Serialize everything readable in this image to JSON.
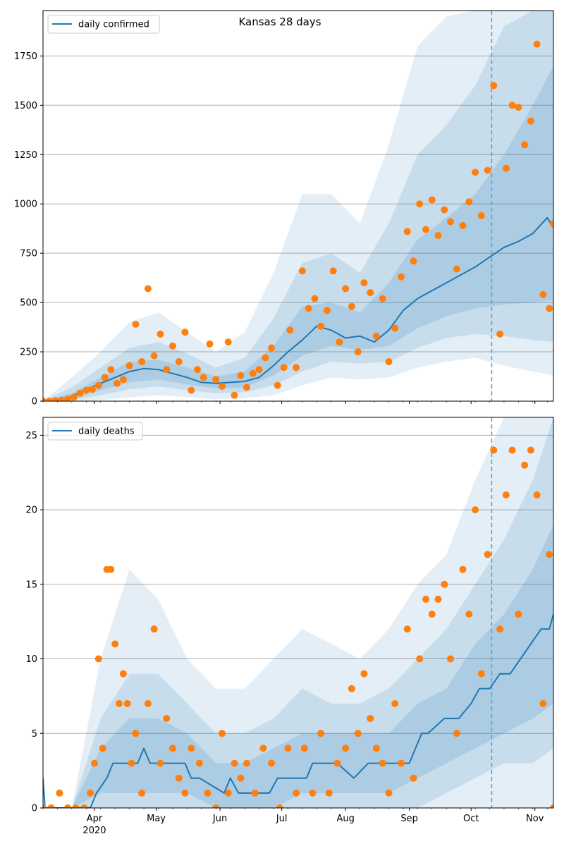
{
  "chart_data": [
    {
      "type": "line",
      "title": "Kansas 28 days",
      "legend": {
        "label": "daily confirmed",
        "placement": "top-left"
      },
      "ylim": [
        0,
        1980
      ],
      "yticks": [
        0,
        250,
        500,
        750,
        1000,
        1250,
        1500,
        1750
      ],
      "grid": "horizontal",
      "x_range": [
        "2020-03-07",
        "2020-11-10"
      ],
      "forecast_start": "2020-10-11",
      "median_line": {
        "x": [
          "2020-03-07",
          "2020-03-14",
          "2020-03-21",
          "2020-03-28",
          "2020-04-04",
          "2020-04-11",
          "2020-04-18",
          "2020-04-25",
          "2020-05-02",
          "2020-05-09",
          "2020-05-16",
          "2020-05-23",
          "2020-05-30",
          "2020-06-06",
          "2020-06-13",
          "2020-06-20",
          "2020-06-27",
          "2020-07-04",
          "2020-07-11",
          "2020-07-18",
          "2020-07-25",
          "2020-08-01",
          "2020-08-08",
          "2020-08-15",
          "2020-08-22",
          "2020-08-29",
          "2020-09-05",
          "2020-09-12",
          "2020-09-19",
          "2020-09-26",
          "2020-10-03",
          "2020-10-10",
          "2020-10-17",
          "2020-10-24",
          "2020-10-31",
          "2020-11-07",
          "2020-11-10"
        ],
        "y": [
          0,
          5,
          25,
          60,
          90,
          120,
          150,
          165,
          160,
          140,
          120,
          95,
          90,
          95,
          100,
          120,
          180,
          250,
          310,
          380,
          360,
          320,
          330,
          300,
          360,
          460,
          520,
          560,
          600,
          640,
          680,
          730,
          780,
          810,
          850,
          930,
          880
        ]
      },
      "bands": [
        {
          "name": "outer",
          "x": [
            "2020-03-07",
            "2020-03-21",
            "2020-04-04",
            "2020-04-18",
            "2020-05-02",
            "2020-05-16",
            "2020-05-30",
            "2020-06-13",
            "2020-06-27",
            "2020-07-11",
            "2020-07-25",
            "2020-08-08",
            "2020-08-22",
            "2020-09-05",
            "2020-09-19",
            "2020-10-03",
            "2020-10-17",
            "2020-10-31",
            "2020-11-10"
          ],
          "low": [
            0,
            0,
            5,
            20,
            30,
            20,
            10,
            15,
            30,
            80,
            120,
            110,
            120,
            170,
            200,
            220,
            180,
            150,
            130
          ],
          "high": [
            0,
            120,
            250,
            400,
            450,
            350,
            250,
            350,
            650,
            1050,
            1050,
            900,
            1300,
            1800,
            1950,
            1980,
            1980,
            1980,
            1980
          ]
        },
        {
          "name": "middle",
          "x": [
            "2020-03-07",
            "2020-03-21",
            "2020-04-04",
            "2020-04-18",
            "2020-05-02",
            "2020-05-16",
            "2020-05-30",
            "2020-06-13",
            "2020-06-27",
            "2020-07-11",
            "2020-07-25",
            "2020-08-08",
            "2020-08-22",
            "2020-09-05",
            "2020-09-19",
            "2020-10-03",
            "2020-10-17",
            "2020-10-31",
            "2020-11-10"
          ],
          "low": [
            0,
            5,
            30,
            60,
            75,
            55,
            40,
            45,
            80,
            150,
            200,
            190,
            200,
            270,
            320,
            340,
            330,
            310,
            300
          ],
          "high": [
            0,
            70,
            170,
            270,
            300,
            240,
            170,
            220,
            420,
            700,
            750,
            650,
            900,
            1250,
            1400,
            1600,
            1900,
            1980,
            1980
          ]
        },
        {
          "name": "inner",
          "x": [
            "2020-03-07",
            "2020-03-21",
            "2020-04-04",
            "2020-04-18",
            "2020-05-02",
            "2020-05-16",
            "2020-05-30",
            "2020-06-13",
            "2020-06-27",
            "2020-07-11",
            "2020-07-25",
            "2020-08-08",
            "2020-08-22",
            "2020-09-05",
            "2020-09-19",
            "2020-10-03",
            "2020-10-17",
            "2020-10-31",
            "2020-11-10"
          ],
          "low": [
            0,
            12,
            55,
            95,
            110,
            85,
            65,
            70,
            130,
            230,
            280,
            260,
            280,
            370,
            430,
            470,
            490,
            500,
            510
          ],
          "high": [
            0,
            40,
            120,
            200,
            210,
            170,
            125,
            150,
            280,
            480,
            500,
            450,
            600,
            820,
            930,
            1050,
            1250,
            1500,
            1700
          ]
        }
      ],
      "observed": {
        "x": [
          "2020-03-07",
          "2020-03-10",
          "2020-03-13",
          "2020-03-16",
          "2020-03-19",
          "2020-03-22",
          "2020-03-25",
          "2020-03-28",
          "2020-03-31",
          "2020-04-03",
          "2020-04-06",
          "2020-04-09",
          "2020-04-12",
          "2020-04-15",
          "2020-04-18",
          "2020-04-21",
          "2020-04-24",
          "2020-04-27",
          "2020-04-30",
          "2020-05-03",
          "2020-05-06",
          "2020-05-09",
          "2020-05-12",
          "2020-05-15",
          "2020-05-18",
          "2020-05-21",
          "2020-05-24",
          "2020-05-27",
          "2020-05-30",
          "2020-06-02",
          "2020-06-05",
          "2020-06-08",
          "2020-06-11",
          "2020-06-14",
          "2020-06-17",
          "2020-06-20",
          "2020-06-23",
          "2020-06-26",
          "2020-06-29",
          "2020-07-02",
          "2020-07-05",
          "2020-07-08",
          "2020-07-11",
          "2020-07-14",
          "2020-07-17",
          "2020-07-20",
          "2020-07-23",
          "2020-07-26",
          "2020-07-29",
          "2020-08-01",
          "2020-08-04",
          "2020-08-07",
          "2020-08-10",
          "2020-08-13",
          "2020-08-16",
          "2020-08-19",
          "2020-08-22",
          "2020-08-25",
          "2020-08-28",
          "2020-08-31",
          "2020-09-03",
          "2020-09-06",
          "2020-09-09",
          "2020-09-12",
          "2020-09-15",
          "2020-09-18",
          "2020-09-21",
          "2020-09-24",
          "2020-09-27",
          "2020-09-30",
          "2020-10-03",
          "2020-10-06",
          "2020-10-09",
          "2020-10-12",
          "2020-10-15",
          "2020-10-18",
          "2020-10-21",
          "2020-10-24",
          "2020-10-27",
          "2020-10-30",
          "2020-11-02",
          "2020-11-05",
          "2020-11-08",
          "2020-11-10"
        ],
        "y": [
          0,
          0,
          3,
          5,
          10,
          20,
          40,
          55,
          60,
          80,
          120,
          160,
          90,
          110,
          180,
          390,
          200,
          570,
          230,
          340,
          160,
          280,
          200,
          350,
          55,
          160,
          120,
          290,
          110,
          75,
          300,
          30,
          130,
          70,
          140,
          160,
          220,
          270,
          80,
          170,
          360,
          170,
          660,
          470,
          520,
          380,
          460,
          660,
          300,
          570,
          480,
          250,
          600,
          550,
          330,
          520,
          200,
          370,
          630,
          860,
          710,
          1000,
          870,
          1020,
          840,
          970,
          910,
          670,
          890,
          1010,
          1160,
          940,
          1170,
          1600,
          340,
          1180,
          1500,
          1490,
          1300,
          1420,
          1810,
          540,
          470,
          900
        ]
      }
    },
    {
      "type": "line",
      "title": "",
      "legend": {
        "label": "daily deaths",
        "placement": "top-left"
      },
      "ylim": [
        0,
        26.2
      ],
      "yticks": [
        0,
        5,
        10,
        15,
        20,
        25
      ],
      "grid": "horizontal",
      "x_range": [
        "2020-03-07",
        "2020-11-10"
      ],
      "forecast_start": "2020-10-11",
      "xtick_labels": [
        "Apr",
        "May",
        "Jun",
        "Jul",
        "Aug",
        "Sep",
        "Oct",
        "Nov"
      ],
      "xtick_sub": "2020",
      "median_line": {
        "x": [
          "2020-03-07",
          "2020-03-08",
          "2020-03-30",
          "2020-04-02",
          "2020-04-07",
          "2020-04-10",
          "2020-04-22",
          "2020-04-25",
          "2020-04-28",
          "2020-05-15",
          "2020-05-18",
          "2020-05-22",
          "2020-06-03",
          "2020-06-06",
          "2020-06-10",
          "2020-06-25",
          "2020-06-29",
          "2020-07-13",
          "2020-07-16",
          "2020-07-28",
          "2020-08-05",
          "2020-08-12",
          "2020-08-18",
          "2020-09-01",
          "2020-09-04",
          "2020-09-07",
          "2020-09-10",
          "2020-09-18",
          "2020-09-25",
          "2020-10-01",
          "2020-10-05",
          "2020-10-10",
          "2020-10-15",
          "2020-10-20",
          "2020-10-25",
          "2020-10-30",
          "2020-11-04",
          "2020-11-08",
          "2020-11-10"
        ],
        "y": [
          2,
          0,
          0,
          1,
          2,
          3,
          3,
          4,
          3,
          3,
          2,
          2,
          1,
          2,
          1,
          1,
          2,
          2,
          3,
          3,
          2,
          3,
          3,
          3,
          4,
          5,
          5,
          6,
          6,
          7,
          8,
          8,
          9,
          9,
          10,
          11,
          12,
          12,
          13
        ]
      },
      "bands": [
        {
          "name": "outer",
          "x": [
            "2020-03-07",
            "2020-03-21",
            "2020-04-04",
            "2020-04-18",
            "2020-05-02",
            "2020-05-16",
            "2020-05-30",
            "2020-06-13",
            "2020-06-27",
            "2020-07-11",
            "2020-07-25",
            "2020-08-08",
            "2020-08-22",
            "2020-09-05",
            "2020-09-19",
            "2020-10-03",
            "2020-10-17",
            "2020-10-31",
            "2020-11-10"
          ],
          "low": [
            0,
            0,
            0,
            0,
            0,
            0,
            0,
            0,
            0,
            0,
            0,
            0,
            0,
            0,
            0,
            0,
            0,
            0,
            0
          ],
          "high": [
            0,
            0,
            10,
            16,
            14,
            10,
            8,
            8,
            10,
            12,
            11,
            10,
            12,
            15,
            17,
            22,
            26.2,
            26.2,
            26.2
          ]
        },
        {
          "name": "middle",
          "x": [
            "2020-03-07",
            "2020-03-21",
            "2020-04-04",
            "2020-04-18",
            "2020-05-02",
            "2020-05-16",
            "2020-05-30",
            "2020-06-13",
            "2020-06-27",
            "2020-07-11",
            "2020-07-25",
            "2020-08-08",
            "2020-08-22",
            "2020-09-05",
            "2020-09-19",
            "2020-10-03",
            "2020-10-17",
            "2020-10-31",
            "2020-11-10"
          ],
          "low": [
            0,
            0,
            0,
            0,
            0,
            0,
            0,
            0,
            0,
            0,
            0,
            0,
            0,
            0,
            1,
            2,
            3,
            3,
            4
          ],
          "high": [
            0,
            0,
            6,
            9,
            9,
            7,
            5,
            5,
            6,
            8,
            7,
            7,
            8,
            10,
            12,
            15,
            18,
            22,
            26.2
          ]
        },
        {
          "name": "inner",
          "x": [
            "2020-03-07",
            "2020-03-21",
            "2020-04-04",
            "2020-04-18",
            "2020-05-02",
            "2020-05-16",
            "2020-05-30",
            "2020-06-13",
            "2020-06-27",
            "2020-07-11",
            "2020-07-25",
            "2020-08-08",
            "2020-08-22",
            "2020-09-05",
            "2020-09-19",
            "2020-10-03",
            "2020-10-17",
            "2020-10-31",
            "2020-11-10"
          ],
          "low": [
            0,
            0,
            1,
            1,
            1,
            1,
            0,
            0,
            0,
            1,
            1,
            1,
            1,
            2,
            3,
            4,
            5,
            6,
            7
          ],
          "high": [
            0,
            0,
            4,
            6,
            6,
            5,
            3,
            3,
            4,
            5,
            5,
            5,
            5,
            7,
            8,
            11,
            13,
            16,
            19
          ]
        }
      ],
      "observed": {
        "x": [
          "2020-03-07",
          "2020-03-11",
          "2020-03-15",
          "2020-03-19",
          "2020-03-23",
          "2020-03-27",
          "2020-03-30",
          "2020-04-01",
          "2020-04-03",
          "2020-04-05",
          "2020-04-07",
          "2020-04-09",
          "2020-04-11",
          "2020-04-13",
          "2020-04-15",
          "2020-04-17",
          "2020-04-19",
          "2020-04-21",
          "2020-04-24",
          "2020-04-27",
          "2020-04-30",
          "2020-05-03",
          "2020-05-06",
          "2020-05-09",
          "2020-05-12",
          "2020-05-15",
          "2020-05-18",
          "2020-05-22",
          "2020-05-26",
          "2020-05-30",
          "2020-06-02",
          "2020-06-05",
          "2020-06-08",
          "2020-06-11",
          "2020-06-14",
          "2020-06-18",
          "2020-06-22",
          "2020-06-26",
          "2020-06-30",
          "2020-07-04",
          "2020-07-08",
          "2020-07-12",
          "2020-07-16",
          "2020-07-20",
          "2020-07-24",
          "2020-07-28",
          "2020-08-01",
          "2020-08-04",
          "2020-08-07",
          "2020-08-10",
          "2020-08-13",
          "2020-08-16",
          "2020-08-19",
          "2020-08-22",
          "2020-08-25",
          "2020-08-28",
          "2020-08-31",
          "2020-09-03",
          "2020-09-06",
          "2020-09-09",
          "2020-09-12",
          "2020-09-15",
          "2020-09-18",
          "2020-09-21",
          "2020-09-24",
          "2020-09-27",
          "2020-09-30",
          "2020-10-03",
          "2020-10-06",
          "2020-10-09",
          "2020-10-12",
          "2020-10-15",
          "2020-10-18",
          "2020-10-21",
          "2020-10-24",
          "2020-10-27",
          "2020-10-30",
          "2020-11-02",
          "2020-11-05",
          "2020-11-08",
          "2020-11-10"
        ],
        "y": [
          0,
          0,
          1,
          0,
          0,
          0,
          1,
          3,
          10,
          4,
          16,
          16,
          11,
          7,
          9,
          7,
          3,
          5,
          1,
          7,
          12,
          3,
          6,
          4,
          2,
          1,
          4,
          3,
          1,
          0,
          5,
          1,
          3,
          2,
          3,
          1,
          4,
          3,
          0,
          4,
          1,
          4,
          1,
          5,
          1,
          3,
          4,
          8,
          5,
          9,
          6,
          4,
          3,
          1,
          7,
          3,
          12,
          2,
          10,
          14,
          13,
          14,
          15,
          10,
          5,
          16,
          13,
          20,
          9,
          17,
          24,
          12,
          21,
          24,
          13,
          23,
          24,
          21,
          7,
          17,
          0
        ]
      }
    }
  ]
}
